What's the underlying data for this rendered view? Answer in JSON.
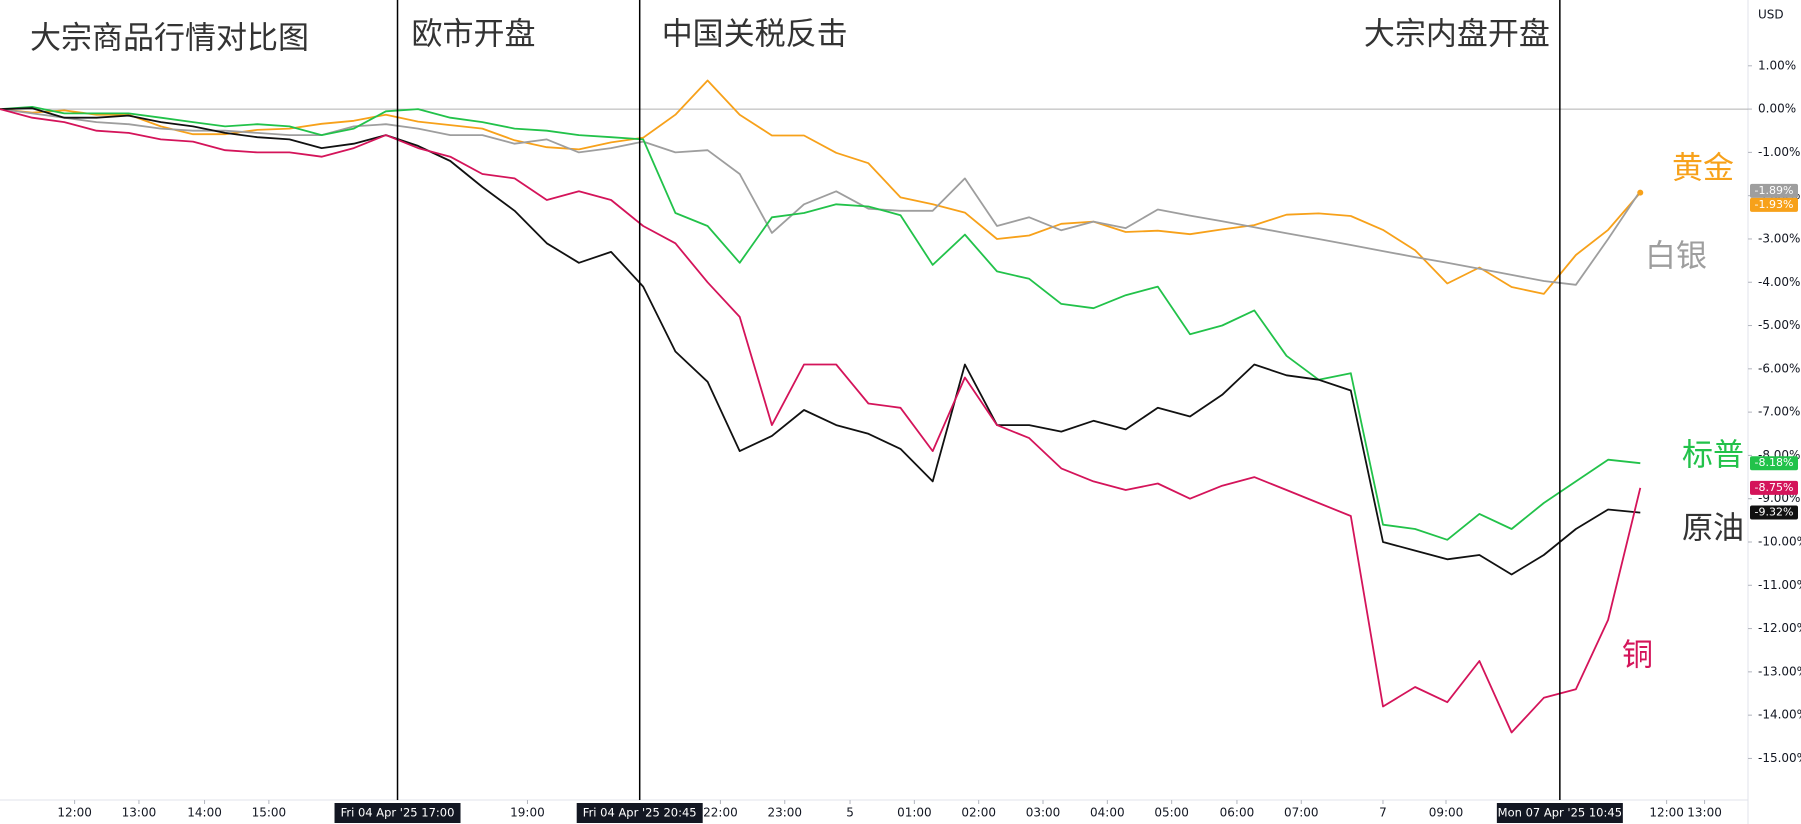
{
  "chart_data": {
    "type": "line",
    "title": "大宗商品行情对比图",
    "currency": "USD",
    "zero_line": true,
    "xlim": [
      0,
      54.35
    ],
    "ylim": [
      -15.96,
      2.52
    ],
    "x": [
      0,
      1,
      2,
      3,
      4,
      5,
      6,
      7,
      8,
      9,
      10,
      11,
      12,
      13,
      14,
      15,
      16,
      17,
      18,
      19,
      20,
      21,
      22,
      23,
      24,
      25,
      26,
      27,
      28,
      29,
      30,
      31,
      32,
      33,
      34,
      35,
      36,
      37,
      38,
      39,
      40,
      41,
      42,
      43,
      44,
      45,
      46,
      47,
      48,
      49,
      50,
      51
    ],
    "xticks": [
      {
        "value": 2.32,
        "label": "12:00"
      },
      {
        "value": 4.32,
        "label": "13:00"
      },
      {
        "value": 6.36,
        "label": "14:00"
      },
      {
        "value": 8.36,
        "label": "15:00"
      },
      {
        "value": 16.4,
        "label": "19:00"
      },
      {
        "value": 22.4,
        "label": "22:00"
      },
      {
        "value": 24.4,
        "label": "23:00"
      },
      {
        "value": 26.43,
        "label": "5"
      },
      {
        "value": 28.43,
        "label": "01:00"
      },
      {
        "value": 30.43,
        "label": "02:00"
      },
      {
        "value": 32.43,
        "label": "03:00"
      },
      {
        "value": 34.43,
        "label": "04:00"
      },
      {
        "value": 36.43,
        "label": "05:00"
      },
      {
        "value": 38.46,
        "label": "06:00"
      },
      {
        "value": 40.46,
        "label": "07:00"
      },
      {
        "value": 43.0,
        "label": "7"
      },
      {
        "value": 44.96,
        "label": "09:00"
      },
      {
        "value": 51.82,
        "label": "12:00"
      },
      {
        "value": 53.0,
        "label": "13:00"
      }
    ],
    "yticks": [
      {
        "value": 1,
        "label": "1.00%"
      },
      {
        "value": 0,
        "label": "0.00%"
      },
      {
        "value": -1,
        "label": "-1.00%"
      },
      {
        "value": -2,
        "label": "-2.00%"
      },
      {
        "value": -3,
        "label": "-3.00%"
      },
      {
        "value": -4,
        "label": "-4.00%"
      },
      {
        "value": -5,
        "label": "-5.00%"
      },
      {
        "value": -6,
        "label": "-6.00%"
      },
      {
        "value": -7,
        "label": "-7.00%"
      },
      {
        "value": -8,
        "label": "-8.00%"
      },
      {
        "value": -9,
        "label": "-9.00%"
      },
      {
        "value": -10,
        "label": "-10.00%"
      },
      {
        "value": -11,
        "label": "-11.00%"
      },
      {
        "value": -12,
        "label": "-12.00%"
      },
      {
        "value": -13,
        "label": "-13.00%"
      },
      {
        "value": -14,
        "label": "-14.00%"
      },
      {
        "value": -15,
        "label": "-15.00%"
      }
    ],
    "events": [
      {
        "x": 12.36,
        "label": "欧市开盘",
        "time_label": "Fri 04 Apr '25   17:00"
      },
      {
        "x": 19.89,
        "label": "中国关税反击",
        "time_label": "Fri 04 Apr '25   20:45"
      },
      {
        "x": 48.5,
        "label": "大宗内盘开盘",
        "time_label": "Mon 07 Apr '25   10:45"
      }
    ],
    "series": [
      {
        "name": "黄金",
        "color": "#f7a11a",
        "last_label": "-1.93%",
        "values": [
          0,
          -0.08,
          -0.03,
          -0.13,
          -0.13,
          -0.4,
          -0.58,
          -0.58,
          -0.48,
          -0.45,
          -0.34,
          -0.27,
          -0.13,
          -0.29,
          -0.37,
          -0.45,
          -0.72,
          -0.88,
          -0.93,
          -0.77,
          -0.66,
          -0.13,
          0.66,
          -0.13,
          -0.61,
          -0.61,
          -1.01,
          -1.25,
          -2.04,
          -2.2,
          -2.39,
          -3.0,
          -2.92,
          -2.65,
          -2.6,
          -2.84,
          -2.81,
          -2.89,
          -2.78,
          -2.68,
          -2.44,
          -2.41,
          -2.47,
          -2.79,
          -3.26,
          -4.03,
          -3.66,
          -4.11,
          -4.27,
          -3.37,
          -2.79,
          -1.93
        ]
      },
      {
        "name": "白银",
        "color": "#9e9e9e",
        "last_label": "-1.89%",
        "values": [
          0,
          -0.1,
          -0.2,
          -0.3,
          -0.35,
          -0.45,
          -0.5,
          -0.5,
          -0.55,
          -0.6,
          -0.6,
          -0.4,
          -0.35,
          -0.45,
          -0.6,
          -0.6,
          -0.8,
          -0.7,
          -1.0,
          -0.9,
          -0.75,
          -1.0,
          -0.95,
          -1.5,
          -2.86,
          -2.2,
          -1.9,
          -2.3,
          -2.35,
          -2.35,
          -1.6,
          -2.7,
          -2.5,
          -2.8,
          -2.6,
          -2.75,
          -2.32,
          -2.46,
          -2.59,
          -2.73,
          -2.87,
          -3.0,
          -3.14,
          -3.28,
          -3.42,
          -3.55,
          -3.69,
          -3.83,
          -3.97,
          -4.06,
          -3.0,
          -1.89
        ]
      },
      {
        "name": "标普",
        "color": "#22c24a",
        "last_label": "-8.18%",
        "values": [
          0,
          0.05,
          -0.1,
          -0.1,
          -0.1,
          -0.2,
          -0.3,
          -0.4,
          -0.35,
          -0.4,
          -0.6,
          -0.45,
          -0.05,
          0,
          -0.2,
          -0.3,
          -0.45,
          -0.5,
          -0.6,
          -0.65,
          -0.7,
          -2.4,
          -2.7,
          -3.55,
          -2.5,
          -2.4,
          -2.2,
          -2.25,
          -2.45,
          -3.6,
          -2.9,
          -3.75,
          -3.92,
          -4.5,
          -4.6,
          -4.3,
          -4.1,
          -5.2,
          -5.0,
          -4.65,
          -5.7,
          -6.25,
          -6.1,
          -9.6,
          -9.7,
          -9.95,
          -9.35,
          -9.7,
          -9.1,
          -8.6,
          -8.1,
          -8.18
        ]
      },
      {
        "name": "原油",
        "color": "#111111",
        "last_label": "-9.32%",
        "values": [
          0,
          0.02,
          -0.2,
          -0.2,
          -0.15,
          -0.3,
          -0.4,
          -0.55,
          -0.65,
          -0.7,
          -0.9,
          -0.8,
          -0.6,
          -0.85,
          -1.2,
          -1.8,
          -2.35,
          -3.1,
          -3.55,
          -3.3,
          -4.1,
          -5.6,
          -6.3,
          -7.9,
          -7.55,
          -6.95,
          -7.3,
          -7.5,
          -7.85,
          -8.6,
          -5.9,
          -7.3,
          -7.3,
          -7.45,
          -7.2,
          -7.4,
          -6.9,
          -7.1,
          -6.6,
          -5.9,
          -6.15,
          -6.25,
          -6.5,
          -10.0,
          -10.2,
          -10.4,
          -10.3,
          -10.75,
          -10.3,
          -9.7,
          -9.25,
          -9.32
        ]
      },
      {
        "name": "铜",
        "color": "#d4145a",
        "last_label": "-8.75%",
        "values": [
          0,
          -0.2,
          -0.3,
          -0.5,
          -0.55,
          -0.7,
          -0.75,
          -0.95,
          -1.0,
          -1.0,
          -1.1,
          -0.9,
          -0.6,
          -0.9,
          -1.1,
          -1.5,
          -1.6,
          -2.1,
          -1.9,
          -2.1,
          -2.7,
          -3.1,
          -4.0,
          -4.8,
          -7.3,
          -5.9,
          -5.9,
          -6.8,
          -6.9,
          -7.9,
          -6.2,
          -7.3,
          -7.6,
          -8.3,
          -8.6,
          -8.8,
          -8.65,
          -9.0,
          -8.7,
          -8.5,
          -8.8,
          -9.1,
          -9.4,
          -13.8,
          -13.35,
          -13.7,
          -12.75,
          -14.4,
          -13.6,
          -13.4,
          -11.8,
          -8.75
        ]
      }
    ]
  }
}
